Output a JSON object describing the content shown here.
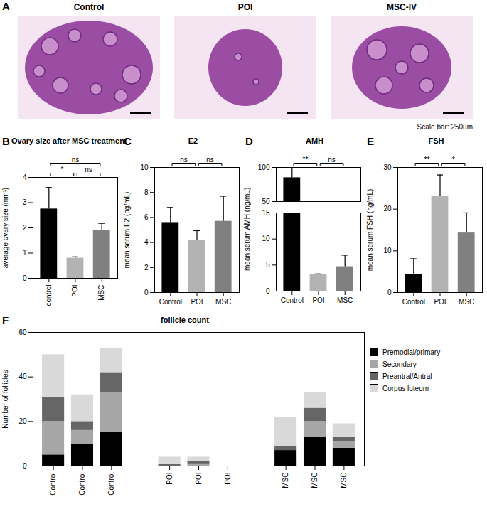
{
  "panel_a": {
    "panel": "A",
    "images": [
      "Control",
      "POI",
      "MSC-IV"
    ],
    "caption": "Scale bar: 250um"
  },
  "chart_data": [
    {
      "panel": "B",
      "type": "bar",
      "title": "Ovary size after MSC treatment",
      "y_label": "average ovary size (mm³)",
      "categories": [
        "control",
        "POI",
        "MSC"
      ],
      "values": [
        2.75,
        0.8,
        1.9
      ],
      "errors": [
        0.85,
        0.05,
        0.28
      ],
      "colors": [
        "#000000",
        "#b3b3b3",
        "#808080"
      ],
      "ylim": [
        0,
        4
      ],
      "yticks": [
        0,
        1,
        2,
        3,
        4
      ],
      "annotations": [
        {
          "from": "POI",
          "to": "MSC",
          "label": "ns"
        },
        {
          "from": "control",
          "to": "POI",
          "label": "*"
        },
        {
          "from": "control",
          "to": "MSC",
          "label": "ns"
        }
      ]
    },
    {
      "panel": "C",
      "type": "bar",
      "title": "E2",
      "y_label": "mean serum E2 (pg/mL)",
      "categories": [
        "Control",
        "POI",
        "MSC"
      ],
      "values": [
        5.6,
        4.15,
        5.7
      ],
      "errors": [
        1.2,
        0.8,
        2.0
      ],
      "colors": [
        "#000000",
        "#b3b3b3",
        "#808080"
      ],
      "ylim": [
        0,
        10
      ],
      "yticks": [
        0,
        2,
        4,
        6,
        8,
        10
      ],
      "annotations": [
        {
          "from": "Control",
          "to": "POI",
          "label": "ns"
        },
        {
          "from": "POI",
          "to": "MSC",
          "label": "ns"
        }
      ]
    },
    {
      "panel": "D",
      "type": "bar",
      "title": "AMH",
      "y_label": "mean serum AMH (ng/mL)",
      "categories": [
        "Control",
        "POI",
        "MSC"
      ],
      "values": [
        85,
        3.2,
        4.7
      ],
      "errors": [
        20,
        0.1,
        2.2
      ],
      "colors": [
        "#000000",
        "#b3b3b3",
        "#808080"
      ],
      "ylim": [
        [
          0,
          15
        ],
        [
          50,
          100
        ]
      ],
      "yticks": [
        [
          0,
          5,
          10,
          15
        ],
        [
          50,
          100
        ]
      ],
      "annotations": [
        {
          "from": "Control",
          "to": "POI",
          "label": "**"
        },
        {
          "from": "POI",
          "to": "MSC",
          "label": "ns"
        }
      ]
    },
    {
      "panel": "E",
      "type": "bar",
      "title": "FSH",
      "y_label": "mean serum FSH (ng/mL)",
      "categories": [
        "Control",
        "POI",
        "MSC"
      ],
      "values": [
        4.3,
        23,
        14.3
      ],
      "errors": [
        3.8,
        5.2,
        4.8
      ],
      "colors": [
        "#000000",
        "#b3b3b3",
        "#808080"
      ],
      "ylim": [
        0,
        30
      ],
      "yticks": [
        0,
        10,
        20,
        30
      ],
      "annotations": [
        {
          "from": "Control",
          "to": "POI",
          "label": "**"
        },
        {
          "from": "POI",
          "to": "MSC",
          "label": "*"
        }
      ]
    },
    {
      "panel": "F",
      "type": "bar",
      "stacked": true,
      "title": "follicle count",
      "y_label": "Number of follicles",
      "categories": [
        "Control",
        "Control",
        "Control",
        "POI",
        "POI",
        "POI",
        "MSC",
        "MSC",
        "MSC"
      ],
      "series": [
        {
          "name": "Premodial/primary",
          "color": "#000000",
          "values": [
            5,
            10,
            15,
            0,
            0,
            0,
            7,
            13,
            8
          ]
        },
        {
          "name": "Secondary",
          "color": "#a6a6a6",
          "values": [
            15,
            6,
            18,
            0,
            1,
            0,
            0,
            7,
            3
          ]
        },
        {
          "name": "Preantral/Antral",
          "color": "#666666",
          "values": [
            11,
            4,
            9,
            1,
            1,
            0,
            2,
            6,
            2
          ]
        },
        {
          "name": "Corpus luteum",
          "color": "#d9d9d9",
          "values": [
            19,
            12,
            11,
            3,
            2,
            0,
            13,
            7,
            6
          ]
        }
      ],
      "ylim": [
        0,
        60
      ],
      "yticks": [
        0,
        20,
        40,
        60
      ],
      "legend": "right"
    }
  ]
}
